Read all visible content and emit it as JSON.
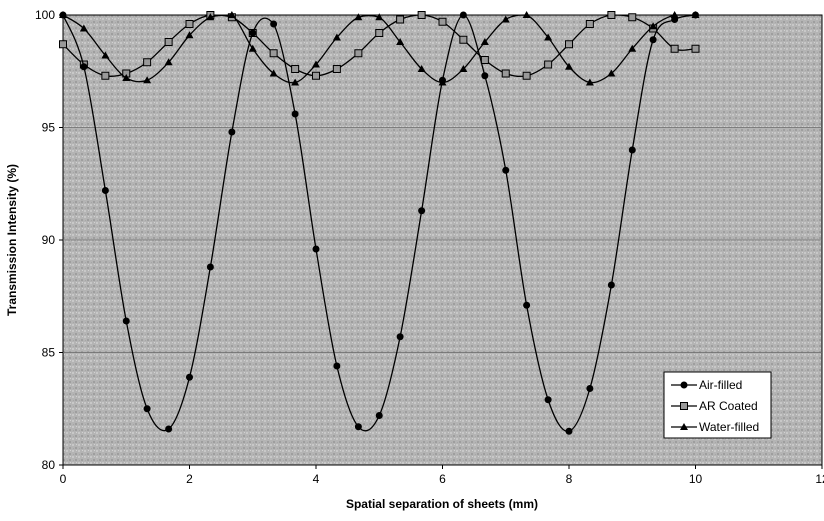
{
  "chart_data": {
    "type": "line",
    "title": "",
    "xlabel": "Spatial separation of sheets (mm)",
    "ylabel": "Transmission Intensity (%)",
    "xlim": [
      0,
      12
    ],
    "ylim": [
      80,
      100
    ],
    "xticks": [
      "0",
      "2",
      "4",
      "6",
      "8",
      "10",
      "12"
    ],
    "yticks": [
      "80",
      "85",
      "90",
      "95",
      "100"
    ],
    "grid": true,
    "legend_position": "bottom-right",
    "plot_background": "#b8b8b8",
    "series": [
      {
        "name": "Air-filled",
        "marker": "circle",
        "color": "#000000",
        "x": [
          0,
          0.33,
          0.67,
          1.0,
          1.33,
          1.67,
          2.0,
          2.33,
          2.67,
          3.0,
          3.33,
          3.67,
          4.0,
          4.33,
          4.67,
          5.0,
          5.33,
          5.67,
          6.0,
          6.33,
          6.67,
          7.0,
          7.33,
          7.67,
          8.0,
          8.33,
          8.67,
          9.0,
          9.33,
          9.67,
          10.0
        ],
        "y": [
          100,
          97.7,
          92.2,
          86.4,
          82.5,
          81.6,
          83.9,
          88.8,
          94.8,
          99.2,
          99.6,
          95.6,
          89.6,
          84.4,
          81.7,
          82.2,
          85.7,
          91.3,
          97.1,
          100,
          97.3,
          93.1,
          87.1,
          82.9,
          81.5,
          83.4,
          88.0,
          94.0,
          98.9,
          99.8,
          100
        ]
      },
      {
        "name": "AR Coated",
        "marker": "square",
        "color": "#888888",
        "x": [
          0,
          0.33,
          0.67,
          1.0,
          1.33,
          1.67,
          2.0,
          2.33,
          2.67,
          3.0,
          3.33,
          3.67,
          4.0,
          4.33,
          4.67,
          5.0,
          5.33,
          5.67,
          6.0,
          6.33,
          6.67,
          7.0,
          7.33,
          7.67,
          8.0,
          8.33,
          8.67,
          9.0,
          9.33,
          9.67,
          10.0
        ],
        "y": [
          98.7,
          97.8,
          97.3,
          97.4,
          97.9,
          98.8,
          99.6,
          100,
          99.9,
          99.2,
          98.3,
          97.6,
          97.3,
          97.6,
          98.3,
          99.2,
          99.8,
          100,
          99.7,
          98.9,
          98.0,
          97.4,
          97.3,
          97.8,
          98.7,
          99.6,
          100,
          99.9,
          99.4,
          98.5,
          98.5
        ]
      },
      {
        "name": "Water-filled",
        "marker": "triangle",
        "color": "#000000",
        "x": [
          0,
          0.33,
          0.67,
          1.0,
          1.33,
          1.67,
          2.0,
          2.33,
          2.67,
          3.0,
          3.33,
          3.67,
          4.0,
          4.33,
          4.67,
          5.0,
          5.33,
          5.67,
          6.0,
          6.33,
          6.67,
          7.0,
          7.33,
          7.67,
          8.0,
          8.33,
          8.67,
          9.0,
          9.33,
          9.67,
          10.0
        ],
        "y": [
          100,
          99.4,
          98.2,
          97.2,
          97.1,
          97.9,
          99.1,
          99.9,
          100,
          98.5,
          97.4,
          97.0,
          97.8,
          99.0,
          99.9,
          99.9,
          98.8,
          97.6,
          97.0,
          97.6,
          98.8,
          99.8,
          100,
          99.0,
          97.7,
          97.0,
          97.4,
          98.5,
          99.5,
          100,
          100
        ]
      }
    ]
  }
}
